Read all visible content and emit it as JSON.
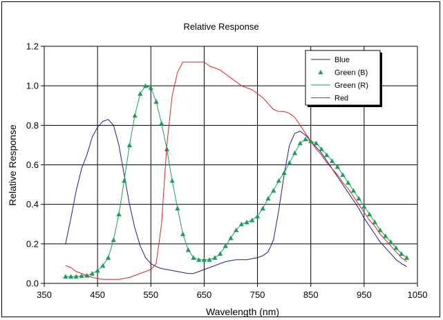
{
  "chart_data": {
    "type": "line",
    "title": "Relative Response",
    "xlabel": "Wavelength (nm)",
    "ylabel": "Relative Response",
    "xlim": [
      350,
      1050
    ],
    "ylim": [
      0,
      1.2
    ],
    "xticks": [
      "350",
      "450",
      "550",
      "650",
      "750",
      "850",
      "950",
      "1050"
    ],
    "yticks": [
      "0.0",
      "0.2",
      "0.4",
      "0.6",
      "0.8",
      "1.0",
      "1.2"
    ],
    "grid": true,
    "legend_position": "top-right",
    "series": [
      {
        "name": "Blue",
        "color": "#1a1a8c",
        "style": "line",
        "x": [
          390,
          400,
          410,
          420,
          430,
          440,
          450,
          460,
          470,
          480,
          490,
          500,
          510,
          520,
          530,
          540,
          550,
          560,
          570,
          580,
          590,
          600,
          610,
          620,
          630,
          640,
          650,
          660,
          670,
          680,
          690,
          700,
          710,
          720,
          730,
          740,
          750,
          760,
          770,
          780,
          790,
          800,
          810,
          820,
          830,
          840,
          850,
          860,
          870,
          880,
          890,
          900,
          910,
          920,
          930,
          940,
          950,
          960,
          970,
          980,
          990,
          1000,
          1010,
          1020,
          1030
        ],
        "y": [
          0.2,
          0.33,
          0.47,
          0.58,
          0.65,
          0.74,
          0.79,
          0.82,
          0.83,
          0.8,
          0.7,
          0.55,
          0.4,
          0.28,
          0.19,
          0.13,
          0.1,
          0.085,
          0.075,
          0.07,
          0.065,
          0.06,
          0.055,
          0.05,
          0.05,
          0.06,
          0.07,
          0.08,
          0.09,
          0.1,
          0.11,
          0.115,
          0.12,
          0.12,
          0.12,
          0.125,
          0.13,
          0.14,
          0.16,
          0.22,
          0.37,
          0.55,
          0.7,
          0.76,
          0.77,
          0.75,
          0.72,
          0.69,
          0.66,
          0.62,
          0.58,
          0.54,
          0.5,
          0.46,
          0.42,
          0.38,
          0.33,
          0.29,
          0.25,
          0.21,
          0.18,
          0.15,
          0.12,
          0.1,
          0.085
        ]
      },
      {
        "name": "Green (B)",
        "color": "#1a9e5a",
        "style": "markers",
        "x": [
          390,
          400,
          410,
          420,
          430,
          440,
          450,
          460,
          470,
          480,
          490,
          500,
          510,
          520,
          530,
          540,
          550,
          560,
          570,
          580,
          590,
          600,
          610,
          620,
          630,
          640,
          650,
          660,
          670,
          680,
          690,
          700,
          710,
          720,
          730,
          740,
          750,
          760,
          770,
          780,
          790,
          800,
          810,
          820,
          830,
          840,
          850,
          860,
          870,
          880,
          890,
          900,
          910,
          920,
          930,
          940,
          950,
          960,
          970,
          980,
          990,
          1000,
          1010,
          1020,
          1030
        ],
        "y": [
          0.035,
          0.035,
          0.035,
          0.038,
          0.04,
          0.05,
          0.065,
          0.09,
          0.13,
          0.22,
          0.35,
          0.52,
          0.7,
          0.85,
          0.96,
          1.0,
          0.99,
          0.92,
          0.81,
          0.68,
          0.52,
          0.38,
          0.25,
          0.17,
          0.13,
          0.12,
          0.12,
          0.12,
          0.13,
          0.15,
          0.19,
          0.23,
          0.27,
          0.3,
          0.31,
          0.32,
          0.34,
          0.38,
          0.43,
          0.47,
          0.52,
          0.56,
          0.61,
          0.66,
          0.71,
          0.73,
          0.72,
          0.71,
          0.68,
          0.65,
          0.62,
          0.59,
          0.55,
          0.51,
          0.47,
          0.43,
          0.39,
          0.35,
          0.31,
          0.27,
          0.24,
          0.21,
          0.18,
          0.15,
          0.13
        ]
      },
      {
        "name": "Green (R)",
        "color": "#1a9e5a",
        "style": "line",
        "x": [
          390,
          400,
          410,
          420,
          430,
          440,
          450,
          460,
          470,
          480,
          490,
          500,
          510,
          520,
          530,
          540,
          550,
          560,
          570,
          580,
          590,
          600,
          610,
          620,
          630,
          640,
          650,
          660,
          670,
          680,
          690,
          700,
          710,
          720,
          730,
          740,
          750,
          760,
          770,
          780,
          790,
          800,
          810,
          820,
          830,
          840,
          850,
          860,
          870,
          880,
          890,
          900,
          910,
          920,
          930,
          940,
          950,
          960,
          970,
          980,
          990,
          1000,
          1010,
          1020,
          1030
        ],
        "y": [
          0.035,
          0.035,
          0.035,
          0.038,
          0.04,
          0.05,
          0.065,
          0.09,
          0.13,
          0.22,
          0.35,
          0.52,
          0.7,
          0.85,
          0.96,
          1.0,
          0.99,
          0.92,
          0.81,
          0.68,
          0.52,
          0.38,
          0.25,
          0.17,
          0.13,
          0.12,
          0.12,
          0.12,
          0.13,
          0.15,
          0.19,
          0.23,
          0.27,
          0.3,
          0.31,
          0.32,
          0.34,
          0.38,
          0.43,
          0.47,
          0.52,
          0.56,
          0.61,
          0.66,
          0.71,
          0.73,
          0.72,
          0.71,
          0.68,
          0.65,
          0.62,
          0.59,
          0.55,
          0.51,
          0.47,
          0.43,
          0.39,
          0.35,
          0.31,
          0.27,
          0.24,
          0.21,
          0.18,
          0.15,
          0.13
        ]
      },
      {
        "name": "Red",
        "color": "#e02020",
        "style": "line",
        "x": [
          390,
          400,
          410,
          420,
          430,
          440,
          450,
          460,
          470,
          480,
          490,
          500,
          510,
          520,
          530,
          540,
          550,
          560,
          570,
          580,
          590,
          600,
          610,
          620,
          630,
          640,
          650,
          660,
          670,
          680,
          690,
          700,
          710,
          720,
          730,
          740,
          750,
          760,
          770,
          780,
          790,
          800,
          810,
          820,
          830,
          840,
          850,
          860,
          870,
          880,
          890,
          900,
          910,
          920,
          930,
          940,
          950,
          960,
          970,
          980,
          990,
          1000,
          1010,
          1020,
          1030
        ],
        "y": [
          0.09,
          0.08,
          0.06,
          0.05,
          0.04,
          0.03,
          0.025,
          0.02,
          0.02,
          0.02,
          0.02,
          0.025,
          0.03,
          0.04,
          0.05,
          0.06,
          0.07,
          0.1,
          0.3,
          0.7,
          0.95,
          1.07,
          1.12,
          1.12,
          1.12,
          1.12,
          1.12,
          1.1,
          1.09,
          1.08,
          1.06,
          1.04,
          1.02,
          1.0,
          0.99,
          0.98,
          0.96,
          0.94,
          0.91,
          0.88,
          0.87,
          0.87,
          0.86,
          0.84,
          0.8,
          0.76,
          0.72,
          0.68,
          0.65,
          0.61,
          0.58,
          0.55,
          0.51,
          0.48,
          0.44,
          0.4,
          0.36,
          0.32,
          0.29,
          0.25,
          0.22,
          0.19,
          0.16,
          0.13,
          0.11
        ]
      }
    ]
  }
}
